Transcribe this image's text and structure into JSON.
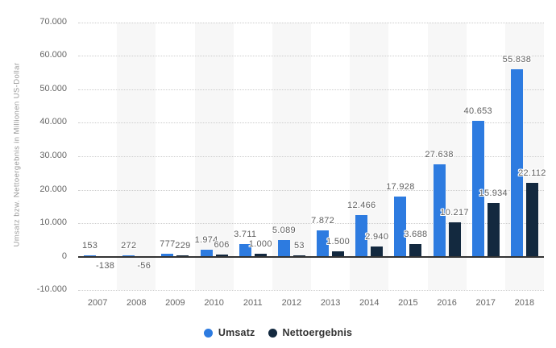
{
  "chart_data": {
    "type": "bar",
    "title": "",
    "ylabel": "Umsatz bzw. Nettoergebnis in Millionen US-Dollar",
    "xlabel": "",
    "categories": [
      "2007",
      "2008",
      "2009",
      "2010",
      "2011",
      "2012",
      "2013",
      "2014",
      "2015",
      "2016",
      "2017",
      "2018"
    ],
    "series": [
      {
        "name": "Umsatz",
        "color": "#2d7be0",
        "values": [
          153,
          272,
          777,
          1974,
          3711,
          5089,
          7872,
          12466,
          17928,
          27638,
          40653,
          55838
        ],
        "labels": [
          "153",
          "272",
          "777",
          "1.974",
          "3.711",
          "5.089",
          "7.872",
          "12.466",
          "17.928",
          "27.638",
          "40.653",
          "55.838"
        ]
      },
      {
        "name": "Nettoergebnis",
        "color": "#13293f",
        "values": [
          -138,
          -56,
          229,
          606,
          1000,
          53,
          1500,
          2940,
          3688,
          10217,
          15934,
          22112
        ],
        "labels": [
          "-138",
          "-56",
          "229",
          "606",
          "1.000",
          "53",
          "1.500",
          "2.940",
          "3.688",
          "10.217",
          "15.934",
          "22.112"
        ]
      }
    ],
    "ylim": [
      -10000,
      70000
    ],
    "ytick_interval": 10000,
    "ytick_labels": [
      "-10.000",
      "0",
      "10.000",
      "20.000",
      "30.000",
      "40.000",
      "50.000",
      "60.000",
      "70.000"
    ],
    "grid": "horizontal-dotted",
    "plot_bands": "alternating-columns-light-gray",
    "legend_position": "bottom-center",
    "colors": {
      "band": "#f7f7f7",
      "gridline": "#cccccc",
      "zero_line": "#333333",
      "tick_text": "#666666",
      "data_label_text": "#5f5f5f",
      "axis_title_text": "#999999",
      "legend_text": "#333333",
      "background": "#ffffff"
    }
  }
}
